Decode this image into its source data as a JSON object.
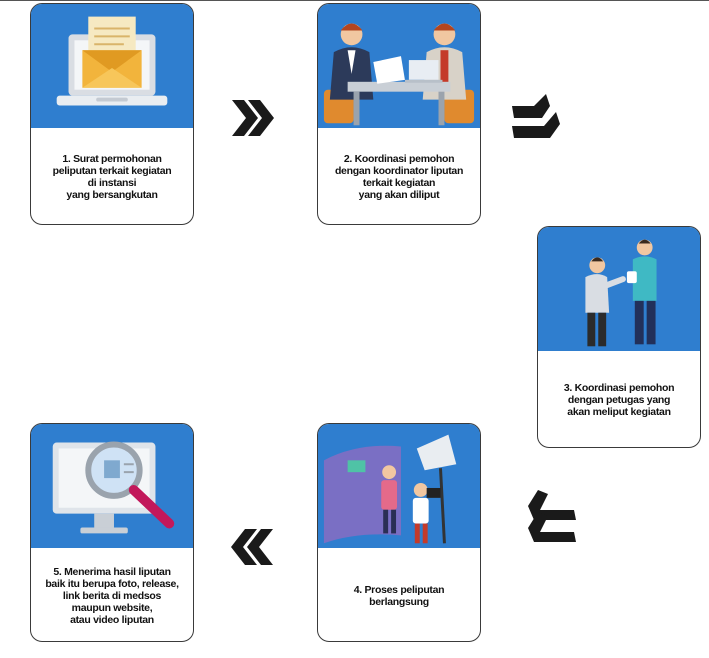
{
  "steps": [
    {
      "lines": [
        "1. Surat permohonan",
        "peliputan terkait kegiatan",
        "di instansi",
        "yang bersangkutan"
      ],
      "illustration": "laptop-envelope-icon"
    },
    {
      "lines": [
        "2. Koordinasi pemohon",
        "dengan koordinator liputan",
        "terkait kegiatan",
        "yang akan diliput"
      ],
      "illustration": "meeting-at-desk-icon"
    },
    {
      "lines": [
        "3. Koordinasi pemohon",
        "dengan petugas yang",
        "akan meliput kegiatan"
      ],
      "illustration": "two-people-talking-icon"
    },
    {
      "lines": [
        "4. Proses peliputan",
        "berlangsung"
      ],
      "illustration": "video-shooting-icon"
    },
    {
      "lines": [
        "5. Menerima hasil liputan",
        "baik itu berupa foto, release,",
        "link berita di medsos",
        "maupun website,",
        "atau video liputan"
      ],
      "illustration": "magnifier-monitor-icon"
    }
  ],
  "arrows": [
    "right",
    "down-right",
    "down-left",
    "left"
  ],
  "colors": {
    "panel": "#2f7ecf",
    "arrow": "#1a1a1a",
    "border": "#3a3a3a"
  }
}
